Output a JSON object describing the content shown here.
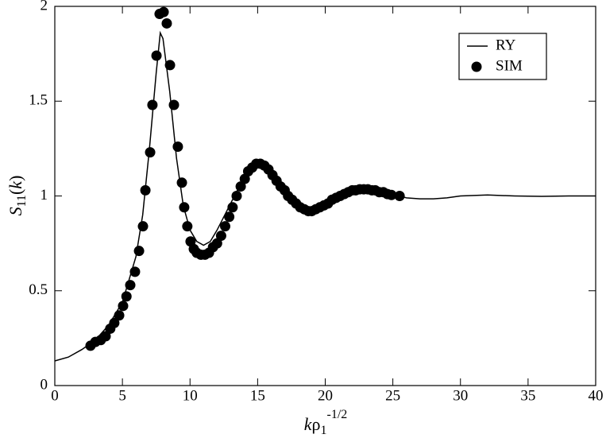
{
  "chart_data": {
    "type": "line",
    "xlabel": [
      "k",
      "ρ",
      "1",
      "-1/2"
    ],
    "ylabel": [
      "S",
      "11",
      "(",
      "k",
      ")"
    ],
    "xlim": [
      0,
      40
    ],
    "ylim": [
      0,
      2
    ],
    "xticks": [
      0,
      5,
      10,
      15,
      20,
      25,
      30,
      35,
      40
    ],
    "yticks": [
      0,
      0.5,
      1,
      1.5,
      2
    ],
    "legend": "upper right",
    "series": [
      {
        "name": "RY",
        "style": "line",
        "color": "#000000",
        "x": [
          0,
          1,
          2,
          3,
          4,
          5,
          6,
          6.5,
          7,
          7.5,
          7.8,
          8,
          8.5,
          9,
          9.5,
          10,
          10.5,
          11,
          11.5,
          12,
          13,
          14,
          15,
          16,
          17,
          18,
          19,
          20,
          21,
          22,
          23,
          24,
          25,
          26,
          27,
          28,
          29,
          30,
          32,
          34,
          36,
          38,
          40
        ],
        "values": [
          0.13,
          0.15,
          0.19,
          0.24,
          0.32,
          0.44,
          0.68,
          0.9,
          1.25,
          1.65,
          1.86,
          1.83,
          1.55,
          1.2,
          0.95,
          0.82,
          0.76,
          0.74,
          0.76,
          0.82,
          0.96,
          1.1,
          1.17,
          1.12,
          1.02,
          0.95,
          0.93,
          0.95,
          0.99,
          1.02,
          1.035,
          1.03,
          1.01,
          0.99,
          0.985,
          0.985,
          0.99,
          1.0,
          1.005,
          1.0,
          0.998,
          1.0,
          1.0
        ]
      },
      {
        "name": "SIM",
        "style": "points",
        "color": "#000000",
        "x": [
          2.64,
          3.0,
          3.4,
          3.76,
          4.1,
          4.4,
          4.76,
          5.05,
          5.3,
          5.58,
          5.93,
          6.23,
          6.52,
          6.7,
          7.05,
          7.22,
          7.52,
          7.75,
          8.05,
          8.28,
          8.52,
          8.81,
          9.1,
          9.4,
          9.57,
          9.8,
          10.04,
          10.28,
          10.5,
          10.8,
          11.1,
          11.4,
          11.7,
          12.0,
          12.3,
          12.6,
          12.9,
          13.15,
          13.45,
          13.75,
          14.05,
          14.3,
          14.6,
          14.9,
          15.2,
          15.5,
          15.8,
          16.1,
          16.4,
          16.7,
          17.0,
          17.25,
          17.55,
          17.85,
          18.15,
          18.45,
          18.75,
          19.0,
          19.3,
          19.6,
          19.9,
          20.2,
          20.5,
          20.8,
          21.1,
          21.4,
          21.7,
          22.0,
          22.25,
          22.55,
          22.85,
          23.15,
          23.45,
          23.7,
          24.0,
          24.3,
          24.6,
          24.9,
          25.5
        ],
        "values": [
          0.21,
          0.23,
          0.24,
          0.26,
          0.3,
          0.33,
          0.37,
          0.42,
          0.47,
          0.53,
          0.6,
          0.71,
          0.84,
          1.03,
          1.23,
          1.48,
          1.74,
          1.96,
          1.97,
          1.91,
          1.69,
          1.48,
          1.26,
          1.07,
          0.94,
          0.84,
          0.76,
          0.72,
          0.7,
          0.69,
          0.69,
          0.7,
          0.73,
          0.75,
          0.79,
          0.84,
          0.89,
          0.94,
          1.0,
          1.05,
          1.09,
          1.13,
          1.15,
          1.17,
          1.17,
          1.16,
          1.14,
          1.11,
          1.08,
          1.05,
          1.03,
          1.0,
          0.98,
          0.96,
          0.94,
          0.93,
          0.92,
          0.92,
          0.93,
          0.94,
          0.95,
          0.96,
          0.98,
          0.99,
          1.0,
          1.01,
          1.02,
          1.03,
          1.03,
          1.035,
          1.035,
          1.035,
          1.03,
          1.03,
          1.02,
          1.02,
          1.01,
          1.005,
          1.0
        ]
      }
    ]
  }
}
